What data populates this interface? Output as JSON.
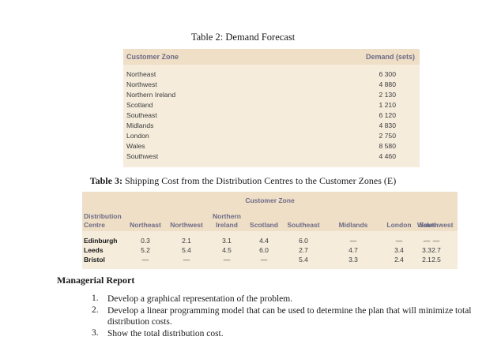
{
  "table2": {
    "title": "Table 2: Demand Forecast",
    "col_zone": "Customer Zone",
    "col_demand": "Demand (sets)",
    "rows": [
      {
        "zone": "Northeast",
        "demand": "6 300"
      },
      {
        "zone": "Northwest",
        "demand": "4 880"
      },
      {
        "zone": "Northern Ireland",
        "demand": "2 130"
      },
      {
        "zone": "Scotland",
        "demand": "1 210"
      },
      {
        "zone": "Southeast",
        "demand": "6 120"
      },
      {
        "zone": "Midlands",
        "demand": "4 830"
      },
      {
        "zone": "London",
        "demand": "2 750"
      },
      {
        "zone": "Wales",
        "demand": "8 580"
      },
      {
        "zone": "Southwest",
        "demand": "4 460"
      }
    ]
  },
  "table3": {
    "title_bold": "Table 3:",
    "title_rest": " Shipping Cost from the Distribution Centres to the Customer Zones (E)",
    "group_header": "Customer Zone",
    "row_header_1": "Distribution",
    "row_header_2": "Centre",
    "columns": [
      {
        "l1": "",
        "l2": "Northeast"
      },
      {
        "l1": "",
        "l2": "Northwest"
      },
      {
        "l1": "Northern",
        "l2": "Ireland"
      },
      {
        "l1": "",
        "l2": "Scotland"
      },
      {
        "l1": "",
        "l2": "Southeast"
      },
      {
        "l1": "",
        "l2": "Midlands"
      },
      {
        "l1": "",
        "l2": "London"
      },
      {
        "l1": "",
        "l2": "Wales"
      },
      {
        "l1": "",
        "l2": "Southwest"
      }
    ],
    "rows": [
      {
        "centre": "Edinburgh",
        "values": [
          "0.3",
          "2.1",
          "3.1",
          "4.4",
          "6.0",
          "—",
          "—",
          "—",
          "—"
        ]
      },
      {
        "centre": "Leeds",
        "values": [
          "5.2",
          "5.4",
          "4.5",
          "6.0",
          "2.7",
          "4.7",
          "3.4",
          "3.3",
          "2.7"
        ]
      },
      {
        "centre": "Bristol",
        "values": [
          "—",
          "—",
          "—",
          "—",
          "5.4",
          "3.3",
          "2.4",
          "2.1",
          "2.5"
        ]
      }
    ]
  },
  "report": {
    "title": "Managerial Report",
    "items": [
      {
        "num": "1.",
        "text": "Develop a graphical representation of the problem."
      },
      {
        "num": "2.",
        "text": "Develop a linear programming model that can be used to determine the plan that will minimize total distribution costs."
      },
      {
        "num": "3.",
        "text": "Show the total distribution cost."
      }
    ]
  }
}
